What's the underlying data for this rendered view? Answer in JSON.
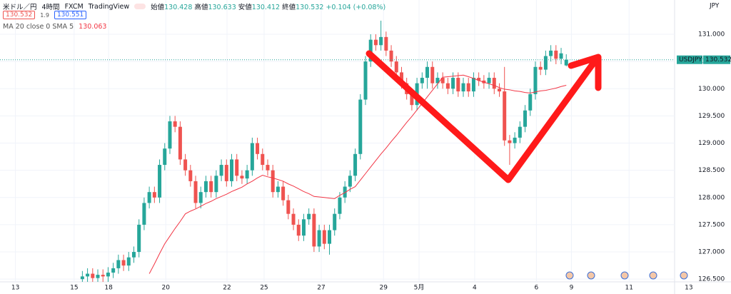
{
  "header": {
    "symbol": "米ドル／円",
    "interval": "4時間",
    "source": "FXCM",
    "platform": "TradingView",
    "open_label": "始値",
    "high_label": "高値",
    "low_label": "安値",
    "close_label": "終値",
    "change": "+0.104 (+0.08%)",
    "bid": "130.532",
    "spread": "1.9",
    "ask": "130.551"
  },
  "chart_data": {
    "type": "candlestick",
    "symbol_label": "USDJPY",
    "currency": "JPY",
    "up_color": "#26a69a",
    "down_color": "#ef5350",
    "x": [
      -2,
      -1,
      0,
      1,
      2,
      3,
      4,
      5,
      6,
      7,
      8,
      9,
      10,
      11,
      12,
      13,
      14,
      15,
      16,
      17,
      18,
      19,
      20,
      21,
      22,
      23,
      24,
      25,
      26,
      27,
      28,
      29,
      30,
      31,
      32,
      33,
      34,
      35,
      36,
      37,
      38,
      39,
      40,
      41,
      42,
      43,
      44,
      45,
      46,
      47,
      48,
      49,
      50,
      51,
      52,
      53,
      54,
      55,
      56,
      57,
      58,
      59,
      60,
      61,
      62,
      63,
      64,
      65,
      66,
      67,
      68,
      69,
      70,
      71,
      72,
      73,
      74,
      75,
      76,
      77,
      78,
      79,
      80,
      81,
      82,
      83,
      84,
      85,
      86,
      87,
      88,
      89,
      90,
      91,
      92
    ],
    "open": [
      126.5,
      126.55,
      126.6,
      126.52,
      126.58,
      126.55,
      126.62,
      126.7,
      126.85,
      126.75,
      126.9,
      127.0,
      127.5,
      127.9,
      128.1,
      128.0,
      128.6,
      128.9,
      129.4,
      129.3,
      128.7,
      128.5,
      128.3,
      127.9,
      128.1,
      128.3,
      128.1,
      128.4,
      128.6,
      128.3,
      128.7,
      128.4,
      128.35,
      128.5,
      129.0,
      128.8,
      128.6,
      128.5,
      128.1,
      128.2,
      127.95,
      127.7,
      127.5,
      127.3,
      127.6,
      127.7,
      127.1,
      127.4,
      127.15,
      127.4,
      127.7,
      128.0,
      128.2,
      128.4,
      128.8,
      129.8,
      130.5,
      130.9,
      130.8,
      130.95,
      130.7,
      130.5,
      130.3,
      130.1,
      129.9,
      129.7,
      130.1,
      130.2,
      130.4,
      130.1,
      130.2,
      130.1,
      130.0,
      130.2,
      129.95,
      130.1,
      129.95,
      130.2,
      130.15,
      130.1,
      130.2,
      130.0,
      129.95,
      129.05,
      129.0,
      129.1,
      129.3,
      129.6,
      129.9,
      130.4,
      130.35,
      130.6,
      130.7,
      130.55,
      130.428
    ],
    "high": [
      126.65,
      126.7,
      126.7,
      126.68,
      126.68,
      126.72,
      126.8,
      126.95,
      126.95,
      127.0,
      127.1,
      127.6,
      128.0,
      128.2,
      128.2,
      128.7,
      129.0,
      129.5,
      129.5,
      129.4,
      128.8,
      128.6,
      128.4,
      128.2,
      128.4,
      128.4,
      128.5,
      128.7,
      128.7,
      128.8,
      128.8,
      128.5,
      128.6,
      129.1,
      129.1,
      128.9,
      128.7,
      128.6,
      128.3,
      128.3,
      128.05,
      127.8,
      127.6,
      127.7,
      127.8,
      127.8,
      127.5,
      127.5,
      127.5,
      127.8,
      128.1,
      128.3,
      128.5,
      128.9,
      129.9,
      130.6,
      131.0,
      131.0,
      131.25,
      131.05,
      130.8,
      130.6,
      130.4,
      130.2,
      130.0,
      130.2,
      130.3,
      130.5,
      130.5,
      130.3,
      130.3,
      130.2,
      130.3,
      130.3,
      130.2,
      130.2,
      130.3,
      130.3,
      130.25,
      130.3,
      130.3,
      130.1,
      130.4,
      129.15,
      129.2,
      129.4,
      129.7,
      130.0,
      130.5,
      130.5,
      130.7,
      130.8,
      130.8,
      130.75,
      130.633
    ],
    "low": [
      126.4,
      126.45,
      126.42,
      126.42,
      126.45,
      126.45,
      126.52,
      126.6,
      126.65,
      126.65,
      126.8,
      126.9,
      127.4,
      127.8,
      127.9,
      127.9,
      128.5,
      128.8,
      129.2,
      128.6,
      128.4,
      128.2,
      127.8,
      127.8,
      128.0,
      128.0,
      128.0,
      128.3,
      128.2,
      128.2,
      128.3,
      128.25,
      128.25,
      128.4,
      128.7,
      128.5,
      128.4,
      128.0,
      128.0,
      127.85,
      127.6,
      127.4,
      127.2,
      127.2,
      127.5,
      127.0,
      127.0,
      127.05,
      126.95,
      127.3,
      127.6,
      127.9,
      128.1,
      128.3,
      128.7,
      129.7,
      130.4,
      130.7,
      130.7,
      130.6,
      130.4,
      130.2,
      130.0,
      129.8,
      129.6,
      129.6,
      130.0,
      130.0,
      130.0,
      130.0,
      130.0,
      129.9,
      129.9,
      129.85,
      129.85,
      129.85,
      129.85,
      130.05,
      130.0,
      130.0,
      129.9,
      129.85,
      128.95,
      128.6,
      128.9,
      129.0,
      129.2,
      129.5,
      129.8,
      130.25,
      130.25,
      130.5,
      130.45,
      130.45,
      130.412
    ],
    "close": [
      126.55,
      126.6,
      126.52,
      126.58,
      126.55,
      126.62,
      126.7,
      126.85,
      126.75,
      126.9,
      127.0,
      127.5,
      127.9,
      128.1,
      128.0,
      128.6,
      128.9,
      129.4,
      129.3,
      128.7,
      128.5,
      128.3,
      127.9,
      128.1,
      128.3,
      128.1,
      128.4,
      128.6,
      128.3,
      128.7,
      128.4,
      128.35,
      128.5,
      129.0,
      128.8,
      128.6,
      128.5,
      128.1,
      128.2,
      127.95,
      127.7,
      127.5,
      127.3,
      127.6,
      127.7,
      127.1,
      127.4,
      127.15,
      127.4,
      127.7,
      128.0,
      128.2,
      128.4,
      128.8,
      129.8,
      130.5,
      130.9,
      130.8,
      130.95,
      130.7,
      130.5,
      130.3,
      130.1,
      129.9,
      129.7,
      130.1,
      130.2,
      130.4,
      130.1,
      130.2,
      130.1,
      130.0,
      130.2,
      129.95,
      130.1,
      129.95,
      130.2,
      130.15,
      130.1,
      130.2,
      130.0,
      129.95,
      129.05,
      129.0,
      129.1,
      129.3,
      129.6,
      129.9,
      130.4,
      130.35,
      130.6,
      130.7,
      130.55,
      130.65,
      130.532
    ],
    "ma": {
      "name": "MA 20 close 0 SMA 5",
      "color": "#f23645",
      "values": [
        null,
        null,
        null,
        null,
        null,
        null,
        null,
        null,
        null,
        null,
        null,
        null,
        null,
        126.6,
        126.78,
        126.97,
        127.15,
        127.29,
        127.43,
        127.56,
        127.7,
        127.75,
        127.79,
        127.84,
        127.89,
        127.93,
        127.98,
        128.02,
        128.06,
        128.11,
        128.15,
        128.19,
        128.25,
        128.3,
        128.36,
        128.41,
        128.38,
        128.36,
        128.33,
        128.3,
        128.25,
        128.21,
        128.16,
        128.11,
        128.07,
        128.02,
        128.01,
        128.0,
        127.99,
        127.98,
        128.04,
        128.09,
        128.15,
        128.2,
        128.32,
        128.44,
        128.56,
        128.68,
        128.8,
        128.91,
        129.03,
        129.14,
        129.26,
        129.38,
        129.49,
        129.61,
        129.73,
        129.85,
        129.97,
        130.09,
        130.21,
        130.22,
        130.23,
        130.24,
        130.25,
        130.22,
        130.19,
        130.15,
        130.12,
        130.09,
        130.06,
        130.02,
        129.99,
        129.98,
        129.96,
        129.95,
        129.93,
        129.92,
        129.94,
        129.96,
        129.97,
        129.99,
        130.01,
        130.04,
        130.063
      ]
    },
    "xlim": [
      -18,
      124
    ],
    "ylim": [
      126.45,
      131.63
    ],
    "xticks": [
      {
        "value": -15,
        "label": "13"
      },
      {
        "value": -3.6,
        "label": "15"
      },
      {
        "value": 3.1,
        "label": "18"
      },
      {
        "value": 14.2,
        "label": "20"
      },
      {
        "value": 26.1,
        "label": "22"
      },
      {
        "value": 33.3,
        "label": "25"
      },
      {
        "value": 44.4,
        "label": "27"
      },
      {
        "value": 56.5,
        "label": "29"
      },
      {
        "value": 63.4,
        "label": "5月"
      },
      {
        "value": 74.2,
        "label": "4"
      },
      {
        "value": 86.2,
        "label": "6"
      },
      {
        "value": 93,
        "label": "9"
      },
      {
        "value": 104.2,
        "label": "11"
      },
      {
        "value": 115.8,
        "label": "13"
      }
    ],
    "yticks": [
      {
        "value": 126.5,
        "label": "126.500"
      },
      {
        "value": 127,
        "label": "127.000"
      },
      {
        "value": 127.5,
        "label": "127.500"
      },
      {
        "value": 128,
        "label": "128.000"
      },
      {
        "value": 128.5,
        "label": "128.500"
      },
      {
        "value": 129,
        "label": "129.000"
      },
      {
        "value": 129.5,
        "label": "129.500"
      },
      {
        "value": 130,
        "label": "130.000"
      },
      {
        "value": 130.5,
        "label": "130.500"
      },
      {
        "value": 131,
        "label": "131.000"
      }
    ],
    "grid": true
  }
}
